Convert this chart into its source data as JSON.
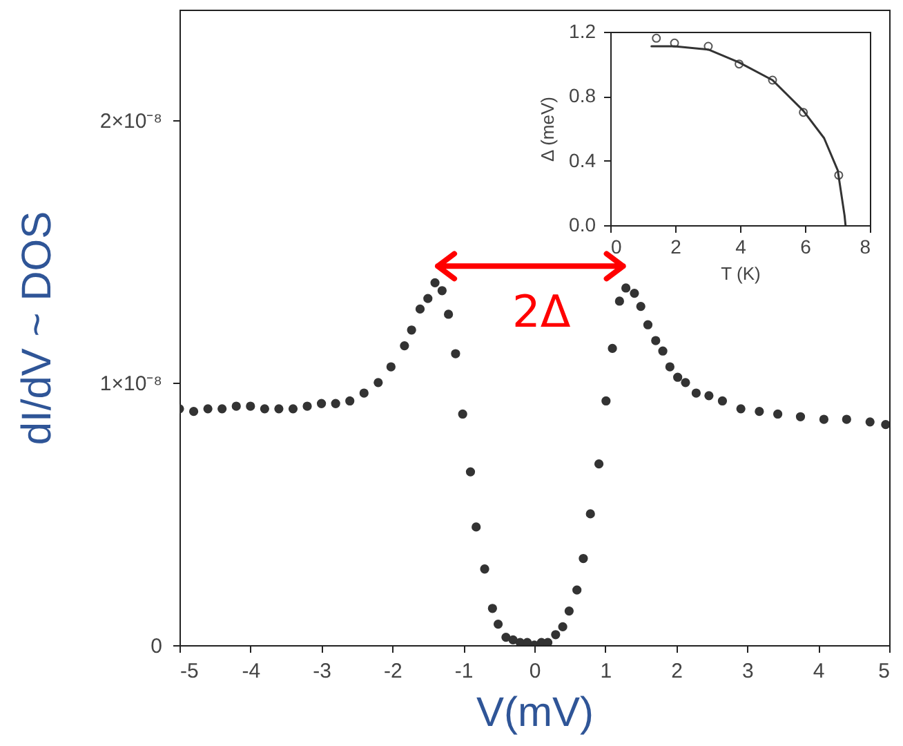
{
  "chart_data": [
    {
      "type": "scatter",
      "xlabel": "V(mV)",
      "ylabel": "dI/dV ~ DOS",
      "color": "#333333",
      "marker": "circle",
      "x": [
        -5,
        -4.8,
        -4.6,
        -4.4,
        -4.2,
        -4.0,
        -3.8,
        -3.6,
        -3.4,
        -3.2,
        -3.0,
        -2.8,
        -2.6,
        -2.4,
        -2.2,
        -2.02,
        -1.83,
        -1.73,
        -1.61,
        -1.5,
        -1.4,
        -1.3,
        -1.21,
        -1.11,
        -1.01,
        -0.9,
        -0.82,
        -0.7,
        -0.59,
        -0.51,
        -0.4,
        -0.3,
        -0.2,
        -0.1,
        0,
        0.1,
        0.19,
        0.3,
        0.4,
        0.49,
        0.6,
        0.69,
        0.79,
        0.91,
        1.01,
        1.1,
        1.2,
        1.29,
        1.41,
        1.5,
        1.6,
        1.71,
        1.81,
        1.91,
        2.02,
        2.13,
        2.28,
        2.46,
        2.65,
        2.91,
        3.17,
        3.43,
        3.75,
        4.08,
        4.4,
        4.73,
        4.95
      ],
      "values": [
        9e-09,
        8.9e-09,
        9e-09,
        9e-09,
        9.1e-09,
        9.1e-09,
        9e-09,
        9e-09,
        9e-09,
        9.1e-09,
        9.2e-09,
        9.2e-09,
        9.3e-09,
        9.6e-09,
        1e-08,
        1.06e-08,
        1.14e-08,
        1.2e-08,
        1.28e-08,
        1.32e-08,
        1.38e-08,
        1.35e-08,
        1.26e-08,
        1.11e-08,
        8.8e-09,
        6.6e-09,
        4.5e-09,
        2.9e-09,
        1.4e-09,
        8e-10,
        3e-10,
        2e-10,
        1e-10,
        1e-10,
        0,
        1e-10,
        1e-10,
        4e-10,
        7e-10,
        1.3e-09,
        2.1e-09,
        3.3e-09,
        5e-09,
        6.9e-09,
        9.3e-09,
        1.13e-08,
        1.31e-08,
        1.36e-08,
        1.34e-08,
        1.29e-08,
        1.22e-08,
        1.16e-08,
        1.12e-08,
        1.06e-08,
        1.02e-08,
        1e-08,
        9.6e-09,
        9.5e-09,
        9.3e-09,
        9e-09,
        8.9e-09,
        8.8e-09,
        8.7e-09,
        8.6e-09,
        8.6e-09,
        8.5e-09,
        8.4e-09
      ],
      "xlim": [
        -5,
        5
      ],
      "xticks": [
        -5,
        -4,
        -3,
        -2,
        -1,
        0,
        1,
        2,
        3,
        4,
        5
      ],
      "ylim": [
        0,
        2.42e-08
      ],
      "yticks": [
        0,
        {
          "value": 1e-08,
          "label": "1×10⁻⁸"
        },
        {
          "value": 2e-08,
          "label": "2×10⁻⁸"
        }
      ],
      "annotations": [
        "2Δ"
      ]
    },
    {
      "type": "scatter",
      "xlabel": "T (K)",
      "ylabel": "Δ (meV)",
      "marker": "circle",
      "series": [
        {
          "color": "#555555",
          "x": [
            1.42,
            1.98,
            3.02,
            3.97,
            5.0,
            5.95,
            7.04
          ],
          "values": [
            1.16,
            1.13,
            1.11,
            1.0,
            0.9,
            0.7,
            0.31
          ]
        },
        {
          "type": "line",
          "marker": "none",
          "color": "#333333",
          "x": [
            1.27,
            1.98,
            3.02,
            3.97,
            5.0,
            5.95,
            6.59,
            7.01,
            7.22,
            7.25
          ],
          "values": [
            1.11,
            1.11,
            1.09,
            1.01,
            0.9,
            0.71,
            0.54,
            0.34,
            0.06,
            0
          ]
        }
      ],
      "xlim": [
        0,
        8
      ],
      "xticks": [
        0,
        2,
        4,
        6,
        8
      ],
      "ylim": [
        0,
        1.2
      ],
      "yticks": [
        {
          "value": 0,
          "label": "0.0"
        },
        {
          "value": 0.4,
          "label": "0.4"
        },
        {
          "value": 0.8,
          "label": "0.8"
        },
        {
          "value": 1.2,
          "label": "1.2"
        }
      ]
    }
  ]
}
